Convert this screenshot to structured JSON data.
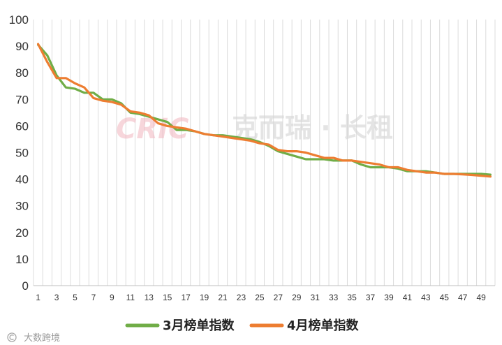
{
  "chart_data": {
    "type": "line",
    "x": [
      1,
      2,
      3,
      4,
      5,
      6,
      7,
      8,
      9,
      10,
      11,
      12,
      13,
      14,
      15,
      16,
      17,
      18,
      19,
      20,
      21,
      22,
      23,
      24,
      25,
      26,
      27,
      28,
      29,
      30,
      31,
      32,
      33,
      34,
      35,
      36,
      37,
      38,
      39,
      40,
      41,
      42,
      43,
      44,
      45,
      46,
      47,
      48,
      49,
      50
    ],
    "x_tick_labels": [
      "1",
      "3",
      "5",
      "7",
      "9",
      "11",
      "13",
      "15",
      "17",
      "19",
      "21",
      "23",
      "25",
      "27",
      "29",
      "31",
      "33",
      "35",
      "37",
      "39",
      "41",
      "43",
      "45",
      "47",
      "49"
    ],
    "y_tick_labels": [
      "0",
      "10",
      "20",
      "30",
      "40",
      "50",
      "60",
      "70",
      "80",
      "90",
      "100"
    ],
    "ylim": [
      0,
      100
    ],
    "grid": "vertical",
    "legend_position": "bottom",
    "series": [
      {
        "name": "3月榜单指数",
        "color": "#70ad47",
        "values": [
          90.5,
          86.5,
          79,
          74.5,
          74,
          72.5,
          72.5,
          70,
          70,
          68.5,
          65,
          64.5,
          63.5,
          62.5,
          61.5,
          58.5,
          58.5,
          58,
          57,
          56.5,
          56.5,
          56,
          55.5,
          55,
          54,
          52.5,
          50.5,
          49.5,
          48.5,
          47.5,
          47.5,
          47.5,
          47,
          47,
          47,
          45.5,
          44.5,
          44.5,
          44.5,
          44,
          43,
          43,
          43,
          42.5,
          42,
          42,
          42,
          42,
          42,
          41.7
        ]
      },
      {
        "name": "4月榜单指数",
        "color": "#ed7d31",
        "values": [
          90.8,
          84,
          78,
          78,
          76,
          74.5,
          70.5,
          69.5,
          69,
          68,
          65.5,
          65,
          64,
          61,
          60,
          59.5,
          59,
          58,
          57,
          56.5,
          56,
          55.5,
          55,
          54.5,
          53.5,
          53,
          51,
          50.5,
          50.5,
          50,
          49,
          48,
          48,
          47,
          47,
          46.5,
          46,
          45.5,
          44.5,
          44.5,
          43.5,
          43,
          42.5,
          42.5,
          42,
          42,
          41.8,
          41.6,
          41.3,
          41
        ]
      }
    ]
  },
  "watermark": {
    "logo": "CRIC",
    "text": "克而瑞 · 长租"
  },
  "footer": {
    "source_text": "大数跨境"
  }
}
